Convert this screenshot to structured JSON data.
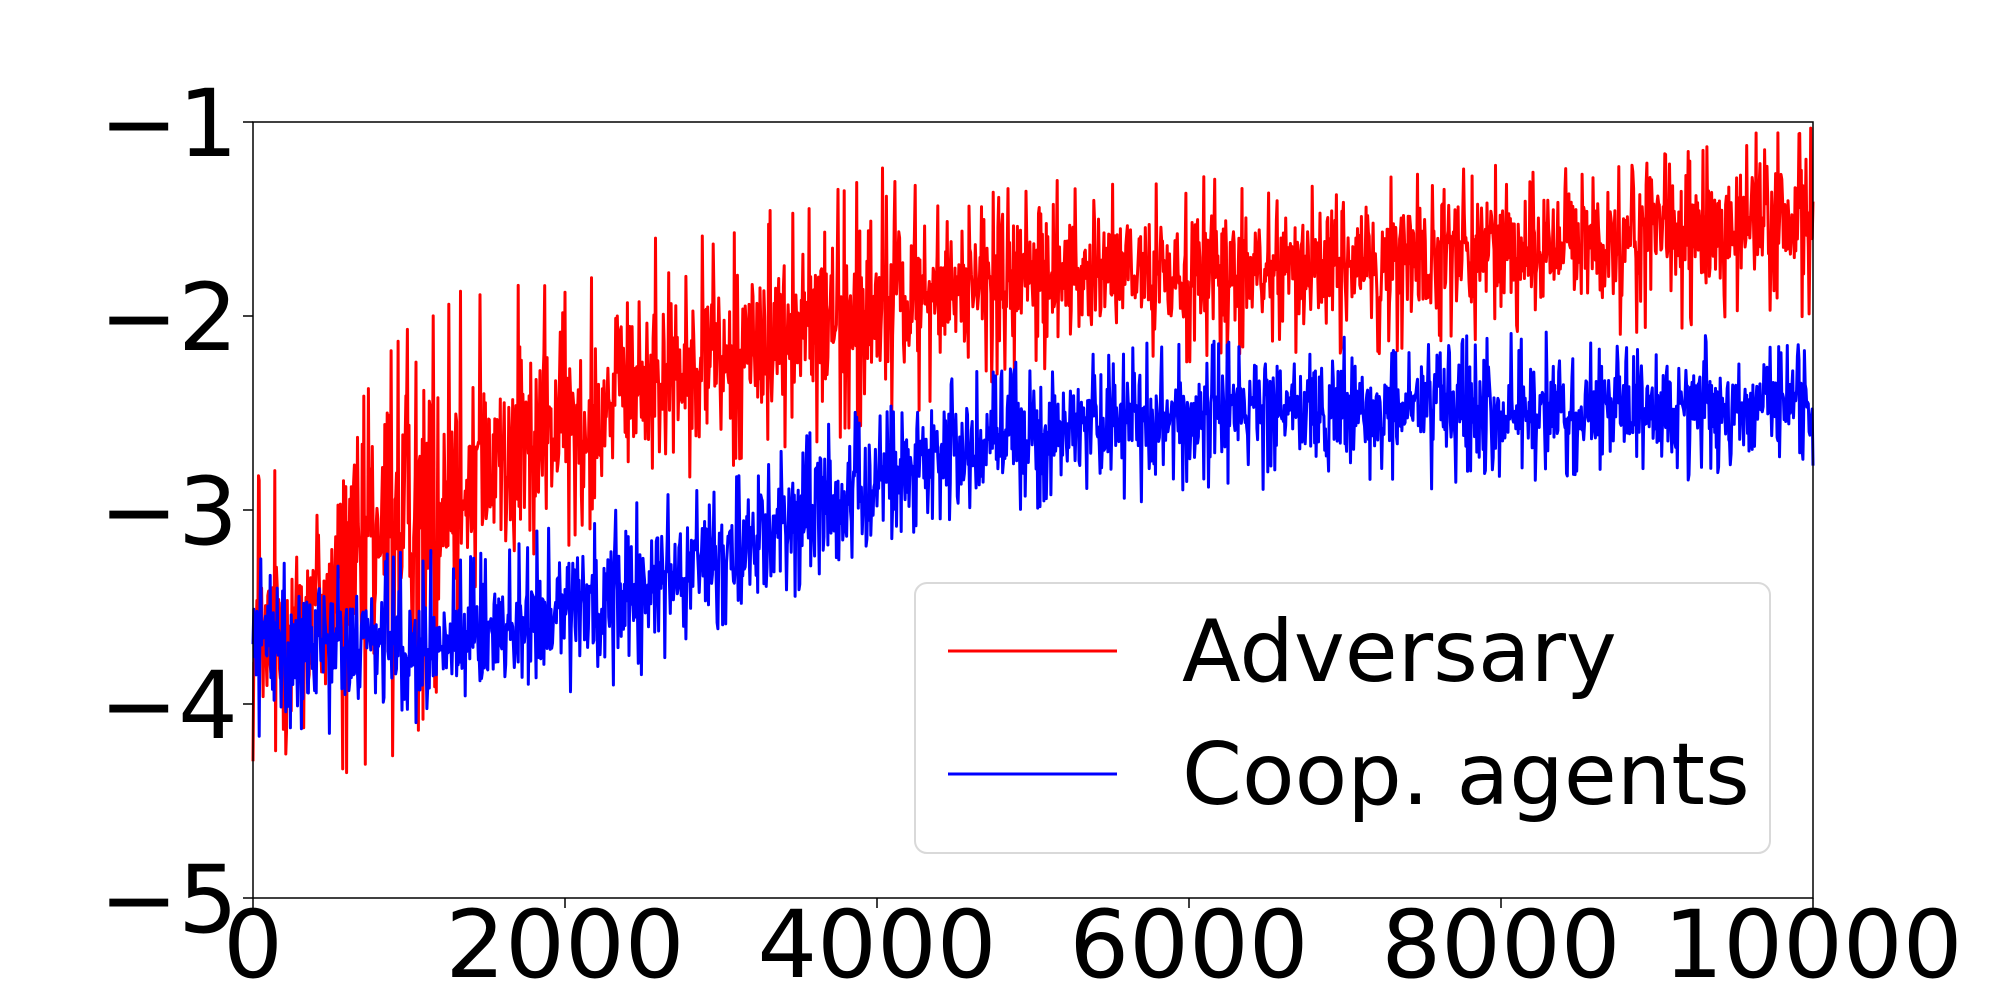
{
  "chart_data": {
    "type": "line",
    "title": "",
    "xlabel": "",
    "ylabel": "",
    "xlim": [
      0,
      10000
    ],
    "ylim": [
      -5,
      -1
    ],
    "x_ticks": [
      {
        "value": 0,
        "label": "0"
      },
      {
        "value": 2000,
        "label": "2000"
      },
      {
        "value": 4000,
        "label": "4000"
      },
      {
        "value": 6000,
        "label": "6000"
      },
      {
        "value": 8000,
        "label": "8000"
      },
      {
        "value": 10000,
        "label": "10000"
      }
    ],
    "y_ticks": [
      {
        "value": -1,
        "label": "−1"
      },
      {
        "value": -2,
        "label": "−2"
      },
      {
        "value": -3,
        "label": "−3"
      },
      {
        "value": -4,
        "label": "−4"
      },
      {
        "value": -5,
        "label": "−5"
      }
    ],
    "grid": false,
    "legend_position": "lower-right",
    "series": [
      {
        "name": "Adversary",
        "color": "#ff0000",
        "trend": {
          "x": [
            0,
            500,
            1000,
            1500,
            2000,
            2500,
            3000,
            3500,
            4000,
            4500,
            5000,
            5500,
            6000,
            6500,
            7000,
            7500,
            8000,
            8500,
            9000,
            9500,
            10000
          ],
          "y": [
            -3.8,
            -3.4,
            -3.0,
            -2.75,
            -2.55,
            -2.35,
            -2.2,
            -2.05,
            -1.95,
            -1.85,
            -1.8,
            -1.78,
            -1.76,
            -1.74,
            -1.72,
            -1.68,
            -1.65,
            -1.62,
            -1.58,
            -1.55,
            -1.5
          ]
        },
        "spread_low": [
          -4.5,
          -4.4,
          -4.3,
          -3.3,
          -3.2,
          -3.0,
          -2.8,
          -2.7,
          -2.6,
          -2.4,
          -2.3,
          -2.25,
          -2.25,
          -2.2,
          -2.2,
          -2.2,
          -2.1,
          -2.1,
          -2.1,
          -2.05,
          -2.0
        ],
        "spread_high": [
          -2.8,
          -2.6,
          -2.0,
          -1.8,
          -1.8,
          -1.6,
          -1.55,
          -1.4,
          -1.2,
          -1.4,
          -1.3,
          -1.3,
          -1.25,
          -1.3,
          -1.3,
          -1.25,
          -1.2,
          -1.2,
          -1.15,
          -1.05,
          -1.0
        ]
      },
      {
        "name": "Coop. agents",
        "color": "#0000ff",
        "trend": {
          "x": [
            0,
            500,
            1000,
            1500,
            2000,
            2500,
            3000,
            3500,
            4000,
            4500,
            5000,
            5500,
            6000,
            6500,
            7000,
            7500,
            8000,
            8500,
            9000,
            9500,
            10000
          ],
          "y": [
            -3.65,
            -3.7,
            -3.72,
            -3.65,
            -3.55,
            -3.4,
            -3.25,
            -3.05,
            -2.85,
            -2.7,
            -2.6,
            -2.55,
            -2.52,
            -2.5,
            -2.5,
            -2.48,
            -2.48,
            -2.47,
            -2.47,
            -2.47,
            -2.47
          ]
        },
        "spread_low": [
          -4.2,
          -4.2,
          -4.1,
          -4.1,
          -4.0,
          -3.85,
          -3.65,
          -3.45,
          -3.25,
          -3.05,
          -3.0,
          -3.0,
          -2.9,
          -2.95,
          -2.85,
          -2.9,
          -2.85,
          -2.85,
          -2.85,
          -2.85,
          -2.85
        ],
        "spread_high": [
          -3.2,
          -3.2,
          -3.2,
          -3.2,
          -3.05,
          -2.9,
          -2.85,
          -2.6,
          -2.45,
          -2.3,
          -2.2,
          -2.15,
          -2.1,
          -2.15,
          -2.1,
          -2.15,
          -2.05,
          -2.1,
          -2.1,
          -2.1,
          -2.1
        ]
      }
    ]
  }
}
